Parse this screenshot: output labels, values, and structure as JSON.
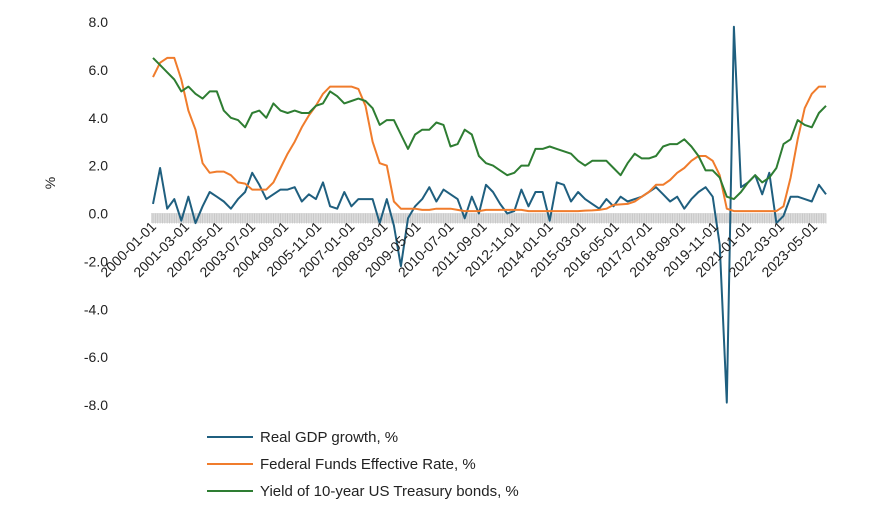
{
  "chart_data": {
    "type": "line",
    "ylabel": "%",
    "ylim": [
      -8,
      8
    ],
    "ytick_labels": [
      "8.0",
      "6.0",
      "4.0",
      "2.0",
      "0.0",
      "-2.0",
      "-4.0",
      "-6.0",
      "-8.0"
    ],
    "ytick_values": [
      8,
      6,
      4,
      2,
      0,
      -2,
      -4,
      -6,
      -8
    ],
    "x_start": "2000-01",
    "x_end": "2023-10",
    "xtick_labels": [
      "2000-01-01",
      "2001-03-01",
      "2002-05-01",
      "2003-07-01",
      "2004-09-01",
      "2005-11-01",
      "2007-01-01",
      "2008-03-01",
      "2009-05-01",
      "2010-07-01",
      "2011-09-01",
      "2012-11-01",
      "2014-01-01",
      "2015-03-01",
      "2016-05-01",
      "2017-07-01",
      "2018-09-01",
      "2019-11-01",
      "2021-01-01",
      "2022-03-01",
      "2023-05-01"
    ],
    "legend_position": "bottom",
    "series": [
      {
        "name": "Real GDP growth, %",
        "color": "#1f5f7f",
        "frequency": "quarterly",
        "start": "2000-01",
        "values": [
          0.4,
          1.9,
          0.2,
          0.6,
          -0.3,
          0.7,
          -0.4,
          0.3,
          0.9,
          0.7,
          0.5,
          0.2,
          0.6,
          0.9,
          1.7,
          1.2,
          0.6,
          0.8,
          1.0,
          1.0,
          1.1,
          0.5,
          0.8,
          0.6,
          1.3,
          0.3,
          0.2,
          0.9,
          0.3,
          0.6,
          0.6,
          0.6,
          -0.4,
          0.6,
          -0.5,
          -2.2,
          -0.2,
          0.3,
          0.6,
          1.1,
          0.5,
          1.0,
          0.8,
          0.6,
          -0.2,
          0.7,
          0.0,
          1.2,
          0.9,
          0.4,
          0.0,
          0.1,
          1.0,
          0.3,
          0.9,
          0.9,
          -0.3,
          1.3,
          1.2,
          0.5,
          0.9,
          0.6,
          0.4,
          0.2,
          0.6,
          0.3,
          0.7,
          0.5,
          0.6,
          0.7,
          0.9,
          1.1,
          0.8,
          0.5,
          0.7,
          0.2,
          0.6,
          0.9,
          1.1,
          0.7,
          -1.3,
          -7.9,
          7.8,
          1.1,
          1.3,
          1.6,
          0.8,
          1.7,
          -0.4,
          -0.1,
          0.7,
          0.7,
          0.6,
          0.5,
          1.2,
          0.8
        ]
      },
      {
        "name": "Federal Funds Effective Rate, %",
        "color": "#f07c2c",
        "frequency": "quarterly",
        "start": "2000-01",
        "values": [
          5.7,
          6.3,
          6.5,
          6.5,
          5.6,
          4.3,
          3.5,
          2.1,
          1.7,
          1.75,
          1.75,
          1.6,
          1.3,
          1.25,
          1.0,
          1.0,
          1.0,
          1.3,
          1.9,
          2.5,
          3.0,
          3.6,
          4.1,
          4.5,
          5.0,
          5.3,
          5.3,
          5.3,
          5.3,
          5.2,
          4.5,
          3.0,
          2.1,
          2.0,
          0.5,
          0.2,
          0.2,
          0.2,
          0.15,
          0.15,
          0.2,
          0.2,
          0.2,
          0.15,
          0.1,
          0.1,
          0.1,
          0.15,
          0.15,
          0.15,
          0.15,
          0.15,
          0.15,
          0.1,
          0.1,
          0.1,
          0.1,
          0.1,
          0.1,
          0.1,
          0.1,
          0.12,
          0.13,
          0.15,
          0.2,
          0.36,
          0.38,
          0.4,
          0.5,
          0.7,
          0.9,
          1.2,
          1.2,
          1.4,
          1.7,
          1.9,
          2.2,
          2.4,
          2.4,
          2.2,
          1.6,
          0.2,
          0.1,
          0.1,
          0.1,
          0.1,
          0.1,
          0.1,
          0.1,
          0.3,
          1.5,
          3.1,
          4.4,
          5.0,
          5.3,
          5.3
        ]
      },
      {
        "name": "Yield of 10-year US Treasury bonds, %",
        "color": "#2e7d32",
        "frequency": "quarterly",
        "start": "2000-01",
        "values": [
          6.5,
          6.2,
          5.9,
          5.6,
          5.1,
          5.3,
          5.0,
          4.8,
          5.1,
          5.1,
          4.3,
          4.0,
          3.9,
          3.6,
          4.2,
          4.3,
          4.0,
          4.6,
          4.3,
          4.2,
          4.3,
          4.2,
          4.2,
          4.5,
          4.6,
          5.1,
          4.9,
          4.6,
          4.7,
          4.8,
          4.7,
          4.4,
          3.7,
          3.9,
          3.9,
          3.3,
          2.7,
          3.3,
          3.5,
          3.5,
          3.8,
          3.7,
          2.8,
          2.9,
          3.5,
          3.3,
          2.4,
          2.1,
          2.0,
          1.8,
          1.6,
          1.7,
          2.0,
          2.0,
          2.7,
          2.7,
          2.8,
          2.7,
          2.6,
          2.5,
          2.2,
          2.0,
          2.2,
          2.2,
          2.2,
          1.9,
          1.6,
          2.1,
          2.5,
          2.3,
          2.3,
          2.4,
          2.8,
          2.9,
          2.9,
          3.1,
          2.8,
          2.4,
          1.8,
          1.8,
          1.5,
          0.7,
          0.6,
          0.9,
          1.3,
          1.6,
          1.3,
          1.5,
          1.9,
          2.9,
          3.1,
          3.9,
          3.7,
          3.6,
          4.2,
          4.5
        ]
      }
    ]
  }
}
